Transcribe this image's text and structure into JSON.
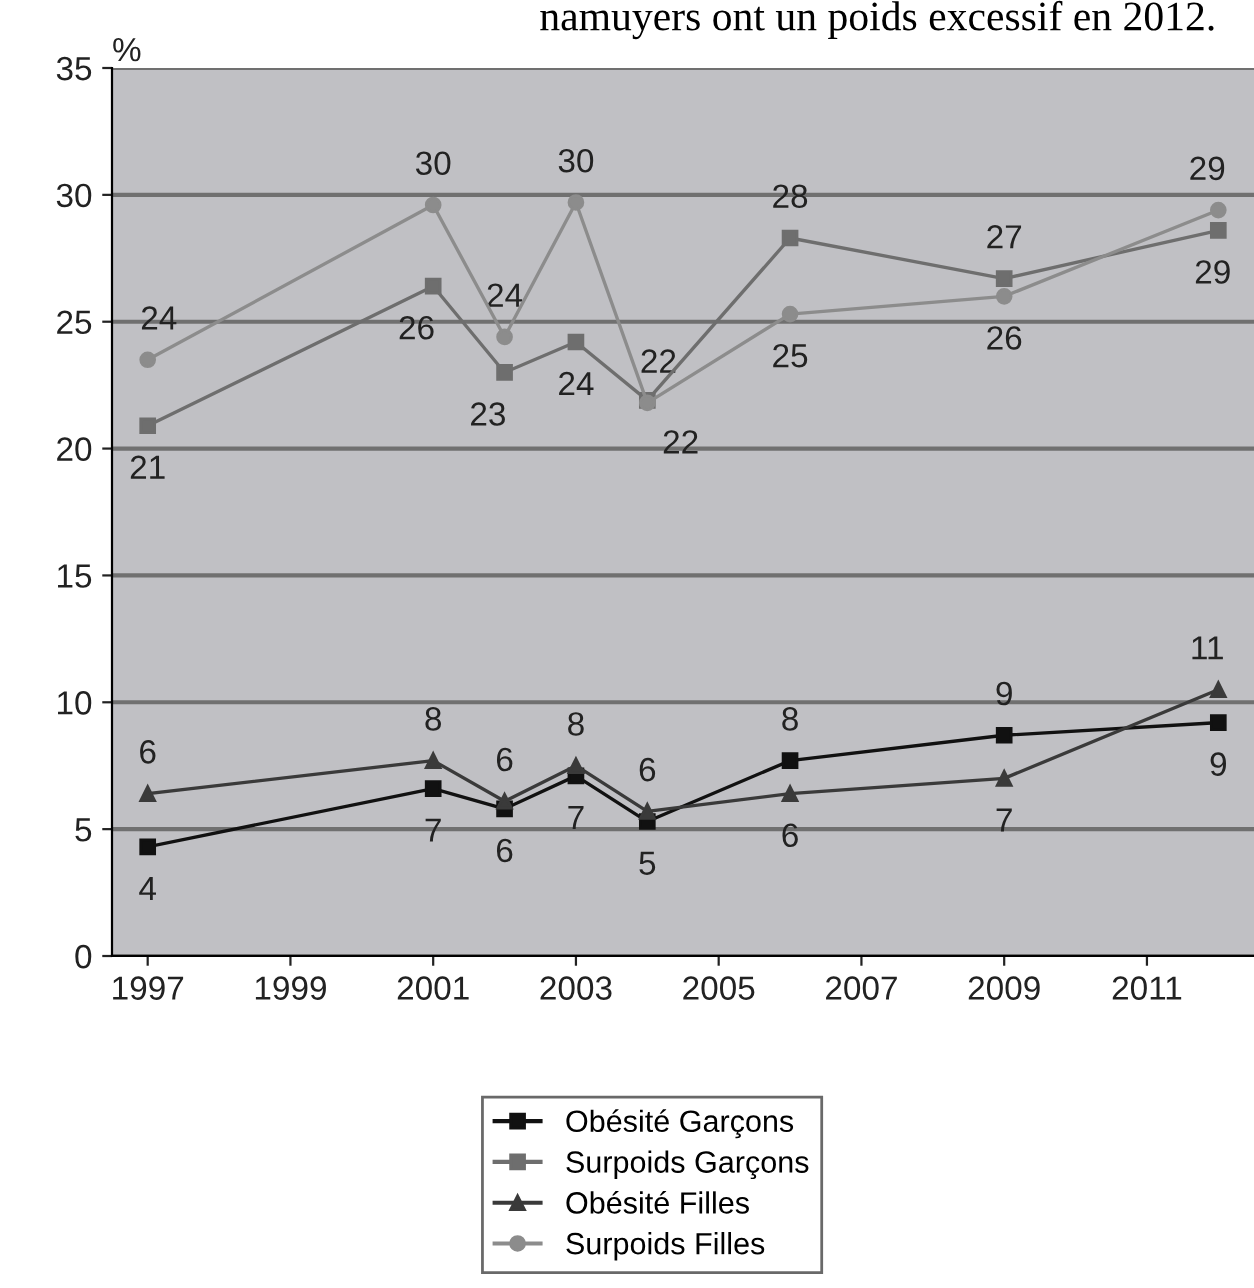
{
  "chart_data": {
    "type": "line",
    "ylabel": "%",
    "annotations": [
      "namuyers ont un poids excessif en 2012."
    ],
    "x": [
      1997,
      2001,
      2002,
      2003,
      2004,
      2006,
      2009,
      2012
    ],
    "xlim": [
      1996.5,
      2012.5
    ],
    "xticks": [
      1997,
      1999,
      2001,
      2003,
      2005,
      2007,
      2009,
      2011
    ],
    "ylim": [
      0,
      35
    ],
    "yticks": [
      0,
      5,
      10,
      15,
      20,
      25,
      30,
      35
    ],
    "grid": "y",
    "legend": "bottom",
    "series": [
      {
        "name": "Obésité Garçons",
        "color": "#111111",
        "marker": "square",
        "values": [
          4.3,
          6.6,
          5.8,
          7.1,
          5.3,
          7.7,
          8.7,
          9.2
        ],
        "value_labels": [
          "4",
          "7",
          "6",
          "7",
          "5",
          "8",
          "9",
          "9"
        ]
      },
      {
        "name": "Surpoids Garçons",
        "color": "#6e6e6e",
        "marker": "square",
        "values": [
          20.9,
          26.4,
          23.0,
          24.2,
          21.9,
          28.3,
          26.7,
          28.6
        ],
        "value_labels": [
          "21",
          "26",
          "23",
          "24",
          "22",
          "28",
          "27",
          "29"
        ]
      },
      {
        "name": "Obésité Filles",
        "color": "#3a3a3a",
        "marker": "triangle",
        "values": [
          6.4,
          7.7,
          6.1,
          7.5,
          5.7,
          6.4,
          7.0,
          10.5
        ],
        "value_labels": [
          "6",
          "8",
          "6",
          "8",
          "6",
          "6",
          "7",
          "11"
        ]
      },
      {
        "name": "Surpoids Filles",
        "color": "#8c8c8c",
        "marker": "circle",
        "values": [
          23.5,
          29.6,
          24.4,
          29.7,
          21.8,
          25.3,
          26.0,
          29.4
        ],
        "value_labels": [
          "24",
          "30",
          "24",
          "30",
          "22",
          "25",
          "26",
          "29"
        ]
      }
    ]
  }
}
